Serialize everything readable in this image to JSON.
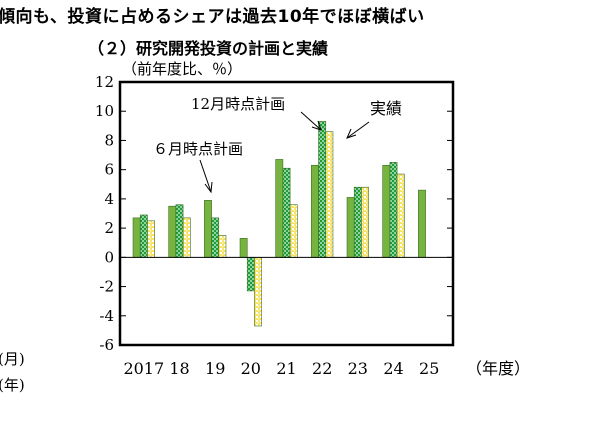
{
  "header_text": "傾向も、投資に占めるシェアは過去10年でほぼ横ばい",
  "side_labels": [
    "(月)",
    "(年)"
  ],
  "chart_data": {
    "type": "bar",
    "title": "（２）研究開発投資の計画と実績",
    "ylabel": "（前年度比、％）",
    "xlabel": "（年度）",
    "ylim": [
      -6,
      12
    ],
    "yticks": [
      12,
      10,
      8,
      6,
      4,
      2,
      0,
      -2,
      -4,
      -6
    ],
    "categories": [
      "2017",
      "18",
      "19",
      "20",
      "21",
      "22",
      "23",
      "24",
      "25"
    ],
    "series": [
      {
        "name": "６月時点計画",
        "color": "#77b43f",
        "pattern": "solid",
        "values": [
          2.7,
          3.5,
          3.9,
          1.3,
          6.7,
          6.3,
          4.1,
          6.3,
          4.6
        ]
      },
      {
        "name": "12月時点計画",
        "color": "#1f9a3c",
        "pattern": "checker",
        "values": [
          2.9,
          3.6,
          2.7,
          -2.3,
          6.1,
          9.3,
          4.8,
          6.5,
          null
        ]
      },
      {
        "name": "実績",
        "color": "#f2d44a",
        "pattern": "dots",
        "values": [
          2.5,
          2.7,
          1.5,
          -4.7,
          3.6,
          8.6,
          4.8,
          5.7,
          null
        ]
      }
    ],
    "grid": false,
    "legend": "annotations with arrows"
  }
}
